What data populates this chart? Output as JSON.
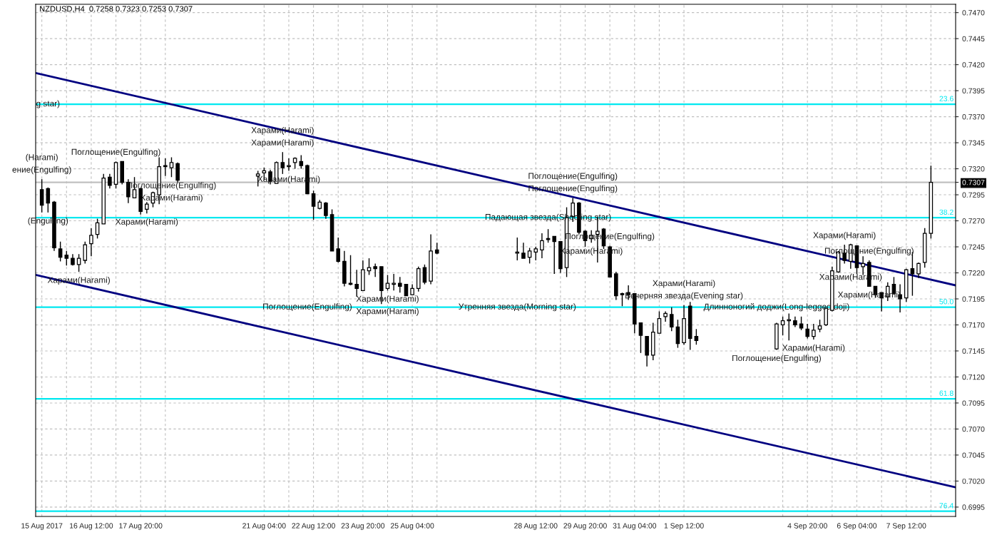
{
  "chart_data": {
    "type": "candlestick",
    "title": "NZDUSD,H4  0.7258 0.7323 0.7253 0.7307",
    "x": [
      "2017-08-15T04:00",
      "2017-08-15T08:00",
      "2017-08-15T12:00",
      "2017-08-15T16:00",
      "2017-08-15T20:00",
      "2017-08-16T00:00",
      "2017-08-16T04:00",
      "2017-08-16T08:00",
      "2017-08-16T12:00",
      "2017-08-16T16:00",
      "2017-08-16T20:00",
      "2017-08-17T00:00",
      "2017-08-17T04:00",
      "2017-08-17T08:00",
      "2017-08-17T12:00",
      "2017-08-17T16:00",
      "2017-08-17T20:00",
      "2017-08-18T00:00",
      "2017-08-18T04:00",
      "2017-08-18T08:00",
      "2017-08-18T12:00",
      "2017-08-18T16:00",
      "2017-08-18T20:00",
      "2017-08-21T00:00",
      "2017-08-21T04:00",
      "2017-08-21T08:00",
      "2017-08-21T12:00",
      "2017-08-21T16:00",
      "2017-08-21T20:00",
      "2017-08-22T00:00",
      "2017-08-22T04:00",
      "2017-08-22T08:00",
      "2017-08-22T12:00",
      "2017-08-22T16:00",
      "2017-08-22T20:00",
      "2017-08-23T00:00",
      "2017-08-23T04:00",
      "2017-08-23T08:00",
      "2017-08-23T12:00",
      "2017-08-23T16:00",
      "2017-08-23T20:00",
      "2017-08-24T00:00",
      "2017-08-24T04:00",
      "2017-08-24T08:00",
      "2017-08-24T12:00",
      "2017-08-24T16:00",
      "2017-08-24T20:00",
      "2017-08-25T00:00",
      "2017-08-25T04:00",
      "2017-08-25T08:00",
      "2017-08-25T12:00",
      "2017-08-25T16:00",
      "2017-08-25T20:00",
      "2017-08-28T00:00",
      "2017-08-28T04:00",
      "2017-08-28T08:00",
      "2017-08-28T12:00",
      "2017-08-28T16:00",
      "2017-08-28T20:00",
      "2017-08-29T00:00",
      "2017-08-29T04:00",
      "2017-08-29T08:00",
      "2017-08-29T12:00",
      "2017-08-29T16:00",
      "2017-08-29T20:00",
      "2017-08-30T00:00",
      "2017-08-30T04:00",
      "2017-08-30T08:00",
      "2017-08-30T12:00",
      "2017-08-30T16:00",
      "2017-08-30T20:00",
      "2017-08-31T00:00",
      "2017-08-31T04:00",
      "2017-08-31T08:00",
      "2017-08-31T12:00",
      "2017-08-31T16:00",
      "2017-08-31T20:00",
      "2017-09-01T00:00",
      "2017-09-01T04:00",
      "2017-09-01T08:00",
      "2017-09-01T12:00",
      "2017-09-01T16:00",
      "2017-09-01T20:00",
      "2017-09-04T00:00",
      "2017-09-04T04:00",
      "2017-09-04T08:00",
      "2017-09-04T12:00",
      "2017-09-04T16:00",
      "2017-09-04T20:00",
      "2017-09-05T00:00",
      "2017-09-05T04:00",
      "2017-09-05T08:00",
      "2017-09-05T12:00",
      "2017-09-05T16:00",
      "2017-09-05T20:00",
      "2017-09-06T00:00",
      "2017-09-06T04:00",
      "2017-09-06T08:00",
      "2017-09-06T12:00",
      "2017-09-06T16:00",
      "2017-09-06T20:00",
      "2017-09-07T00:00",
      "2017-09-07T04:00",
      "2017-09-07T08:00",
      "2017-09-07T12:00",
      "2017-09-07T16:00",
      "2017-09-07T20:00",
      "2017-09-08T00:00",
      "2017-09-08T04:00"
    ],
    "ohlc": [
      [
        0.73,
        0.731,
        0.7278,
        0.7285
      ],
      [
        0.7301,
        0.7302,
        0.7278,
        0.7287
      ],
      [
        0.7288,
        0.7289,
        0.7241,
        0.7244
      ],
      [
        0.7243,
        0.725,
        0.7231,
        0.7235
      ],
      [
        0.7237,
        0.7241,
        0.7227,
        0.7234
      ],
      [
        0.7234,
        0.7238,
        0.7227,
        0.7228
      ],
      [
        0.7228,
        0.7238,
        0.7221,
        0.7234
      ],
      [
        0.7232,
        0.725,
        0.7229,
        0.7247
      ],
      [
        0.7248,
        0.7263,
        0.7236,
        0.7256
      ],
      [
        0.7257,
        0.7272,
        0.7253,
        0.7268
      ],
      [
        0.7267,
        0.7315,
        0.7267,
        0.7311
      ],
      [
        0.7312,
        0.7315,
        0.7301,
        0.7304
      ],
      [
        0.7305,
        0.7327,
        0.7301,
        0.7326
      ],
      [
        0.7327,
        0.7327,
        0.7305,
        0.7307
      ],
      [
        0.7307,
        0.731,
        0.7287,
        0.7293
      ],
      [
        0.7292,
        0.7312,
        0.7292,
        0.73
      ],
      [
        0.7301,
        0.7301,
        0.7276,
        0.7279
      ],
      [
        0.7281,
        0.7288,
        0.7277,
        0.7286
      ],
      [
        0.7287,
        0.7298,
        0.7283,
        0.7297
      ],
      [
        0.7295,
        0.7331,
        0.7286,
        0.7322
      ],
      [
        0.7323,
        0.733,
        0.7313,
        0.7322
      ],
      [
        0.7321,
        0.7331,
        0.7312,
        0.7326
      ],
      [
        0.7325,
        0.7326,
        0.7307,
        0.7309
      ],
      [
        0.7313,
        0.7318,
        0.7303,
        0.7315
      ],
      [
        0.7316,
        0.7321,
        0.7309,
        0.7318
      ],
      [
        0.7317,
        0.7319,
        0.7305,
        0.7308
      ],
      [
        0.7306,
        0.7327,
        0.7306,
        0.7326
      ],
      [
        0.7326,
        0.7336,
        0.7315,
        0.7321
      ],
      [
        0.7322,
        0.733,
        0.7318,
        0.7323
      ],
      [
        0.7326,
        0.7331,
        0.732,
        0.733
      ],
      [
        0.7327,
        0.7333,
        0.732,
        0.7323
      ],
      [
        0.7323,
        0.7324,
        0.7296,
        0.7296
      ],
      [
        0.7296,
        0.7299,
        0.7271,
        0.7284
      ],
      [
        0.7282,
        0.729,
        0.7281,
        0.7288
      ],
      [
        0.7287,
        0.7288,
        0.7272,
        0.7275
      ],
      [
        0.7276,
        0.7281,
        0.7241,
        0.7241
      ],
      [
        0.7243,
        0.7254,
        0.723,
        0.7231
      ],
      [
        0.7231,
        0.7241,
        0.7207,
        0.721
      ],
      [
        0.721,
        0.7237,
        0.7208,
        0.7209
      ],
      [
        0.7209,
        0.7223,
        0.7197,
        0.7205
      ],
      [
        0.7203,
        0.7232,
        0.7203,
        0.7223
      ],
      [
        0.7222,
        0.7234,
        0.7218,
        0.7225
      ],
      [
        0.7226,
        0.7229,
        0.7216,
        0.7224
      ],
      [
        0.7226,
        0.7226,
        0.719,
        0.7203
      ],
      [
        0.7205,
        0.7218,
        0.7203,
        0.721
      ],
      [
        0.7209,
        0.7219,
        0.7203,
        0.721
      ],
      [
        0.721,
        0.7216,
        0.7201,
        0.7207
      ],
      [
        0.7209,
        0.7209,
        0.7198,
        0.7198
      ],
      [
        0.7199,
        0.7209,
        0.7199,
        0.7205
      ],
      [
        0.7205,
        0.7226,
        0.7202,
        0.7224
      ],
      [
        0.7225,
        0.7228,
        0.7209,
        0.7211
      ],
      [
        0.7212,
        0.7257,
        0.7209,
        0.7241
      ],
      [
        0.7242,
        0.7249,
        0.7238,
        0.7239
      ],
      [
        0.7239,
        0.7254,
        0.7232,
        0.724
      ],
      [
        0.7239,
        0.7249,
        0.7234,
        0.7234
      ],
      [
        0.7235,
        0.7244,
        0.7229,
        0.7241
      ],
      [
        0.724,
        0.7245,
        0.7232,
        0.7243
      ],
      [
        0.7242,
        0.7258,
        0.7234,
        0.7251
      ],
      [
        0.7253,
        0.7262,
        0.7249,
        0.7252
      ],
      [
        0.7255,
        0.7255,
        0.7219,
        0.725
      ],
      [
        0.725,
        0.725,
        0.722,
        0.7224
      ],
      [
        0.7225,
        0.7283,
        0.7216,
        0.7273
      ],
      [
        0.7274,
        0.7292,
        0.7269,
        0.7287
      ],
      [
        0.7287,
        0.7288,
        0.7257,
        0.7259
      ],
      [
        0.726,
        0.7261,
        0.7245,
        0.7251
      ],
      [
        0.7253,
        0.7261,
        0.7249,
        0.7256
      ],
      [
        0.7257,
        0.7274,
        0.723,
        0.726
      ],
      [
        0.7262,
        0.7263,
        0.7243,
        0.7246
      ],
      [
        0.7245,
        0.7246,
        0.7216,
        0.7216
      ],
      [
        0.7219,
        0.7221,
        0.7194,
        0.7198
      ],
      [
        0.72,
        0.7201,
        0.7188,
        0.7199
      ],
      [
        0.7201,
        0.7208,
        0.7194,
        0.7199
      ],
      [
        0.72,
        0.72,
        0.7162,
        0.7171
      ],
      [
        0.7172,
        0.7172,
        0.7143,
        0.716
      ],
      [
        0.7159,
        0.7159,
        0.713,
        0.7141
      ],
      [
        0.7141,
        0.7172,
        0.7136,
        0.7163
      ],
      [
        0.7162,
        0.7183,
        0.7162,
        0.7176
      ],
      [
        0.7178,
        0.7183,
        0.7173,
        0.7181
      ],
      [
        0.718,
        0.7187,
        0.7164,
        0.7168
      ],
      [
        0.7168,
        0.7175,
        0.7148,
        0.7152
      ],
      [
        0.7153,
        0.7189,
        0.7151,
        0.7176
      ],
      [
        0.7188,
        0.7192,
        0.7146,
        0.7157
      ],
      [
        0.7159,
        0.7166,
        0.7151,
        0.7155
      ],
      [
        0.7147,
        0.7172,
        0.7146,
        0.7171
      ],
      [
        0.717,
        0.7178,
        0.716,
        0.7174
      ],
      [
        0.7174,
        0.7181,
        0.7155,
        0.7175
      ],
      [
        0.7174,
        0.7178,
        0.7168,
        0.717
      ],
      [
        0.7171,
        0.7178,
        0.7165,
        0.7167
      ],
      [
        0.7166,
        0.7171,
        0.7157,
        0.7159
      ],
      [
        0.7159,
        0.7171,
        0.7156,
        0.7165
      ],
      [
        0.7166,
        0.7175,
        0.7163,
        0.7169
      ],
      [
        0.717,
        0.7186,
        0.7169,
        0.7186
      ],
      [
        0.7184,
        0.7226,
        0.7183,
        0.7222
      ],
      [
        0.7221,
        0.7241,
        0.722,
        0.724
      ],
      [
        0.7239,
        0.7247,
        0.7229,
        0.7232
      ],
      [
        0.7231,
        0.7248,
        0.7224,
        0.7247
      ],
      [
        0.7246,
        0.7246,
        0.7219,
        0.7225
      ],
      [
        0.7226,
        0.7236,
        0.7218,
        0.7229
      ],
      [
        0.723,
        0.7232,
        0.7207,
        0.7207
      ],
      [
        0.7207,
        0.7207,
        0.7196,
        0.7199
      ],
      [
        0.7201,
        0.7201,
        0.7183,
        0.7196
      ],
      [
        0.7197,
        0.7211,
        0.7193,
        0.7207
      ],
      [
        0.7209,
        0.7216,
        0.7199,
        0.72
      ],
      [
        0.7199,
        0.7209,
        0.7182,
        0.7195
      ],
      [
        0.7196,
        0.7224,
        0.7192,
        0.7223
      ],
      [
        0.7224,
        0.724,
        0.7198,
        0.7219
      ],
      [
        0.7219,
        0.723,
        0.7215,
        0.7229
      ],
      [
        0.723,
        0.7263,
        0.7225,
        0.7258
      ],
      [
        0.7258,
        0.7323,
        0.7253,
        0.7307
      ]
    ],
    "series": [
      {
        "type": "line",
        "color": "#000080",
        "x": [
          "2017-08-15T00:00",
          "2017-09-08T20:00"
        ],
        "values": [
          0.7412,
          0.7208
        ]
      },
      {
        "type": "line",
        "color": "#000080",
        "x": [
          "2017-08-15T00:00",
          "2017-09-08T20:00"
        ],
        "values": [
          0.7218,
          0.7014
        ]
      }
    ],
    "xlim": [
      "2017-08-15T00:00",
      "2017-09-08T20:00"
    ],
    "xticks": [
      {
        "value": "2017-08-15T04:00",
        "label": "15 Aug 2017"
      },
      {
        "value": "2017-08-15T20:00",
        "label": null
      },
      {
        "value": "2017-08-16T12:00",
        "label": "16 Aug 12:00"
      },
      {
        "value": "2017-08-17T04:00",
        "label": null
      },
      {
        "value": "2017-08-17T20:00",
        "label": "17 Aug 20:00"
      },
      {
        "value": "2017-08-18T12:00",
        "label": null
      },
      {
        "value": "2017-08-21T04:00",
        "label": "21 Aug 04:00"
      },
      {
        "value": "2017-08-21T20:00",
        "label": null
      },
      {
        "value": "2017-08-22T12:00",
        "label": "22 Aug 12:00"
      },
      {
        "value": "2017-08-23T04:00",
        "label": null
      },
      {
        "value": "2017-08-23T20:00",
        "label": "23 Aug 20:00"
      },
      {
        "value": "2017-08-24T12:00",
        "label": null
      },
      {
        "value": "2017-08-25T04:00",
        "label": "25 Aug 04:00"
      },
      {
        "value": "2017-08-25T20:00",
        "label": null
      },
      {
        "value": "2017-08-28T12:00",
        "label": "28 Aug 12:00"
      },
      {
        "value": "2017-08-29T04:00",
        "label": null
      },
      {
        "value": "2017-08-29T20:00",
        "label": "29 Aug 20:00"
      },
      {
        "value": "2017-08-30T12:00",
        "label": null
      },
      {
        "value": "2017-08-31T04:00",
        "label": "31 Aug 04:00"
      },
      {
        "value": "2017-08-31T20:00",
        "label": null
      },
      {
        "value": "2017-09-01T12:00",
        "label": "1 Sep 12:00"
      },
      {
        "value": "2017-09-04T04:00",
        "label": null
      },
      {
        "value": "2017-09-04T20:00",
        "label": "4 Sep 20:00"
      },
      {
        "value": "2017-09-05T12:00",
        "label": null
      },
      {
        "value": "2017-09-06T04:00",
        "label": "6 Sep 04:00"
      },
      {
        "value": "2017-09-06T20:00",
        "label": null
      },
      {
        "value": "2017-09-07T12:00",
        "label": "7 Sep 12:00"
      },
      {
        "value": "2017-09-08T04:00",
        "label": null
      }
    ],
    "ylim": [
      0.6986,
      0.7478
    ],
    "yticks": [
      0.6995,
      {
        "value": 0.702,
        "label": "0.7020"
      },
      0.7045,
      {
        "value": 0.707,
        "label": "0.7070"
      },
      0.7095,
      {
        "value": 0.712,
        "label": "0.7120"
      },
      0.7145,
      {
        "value": 0.717,
        "label": "0.7170"
      },
      0.7195,
      {
        "value": 0.722,
        "label": "0.7220"
      },
      0.7245,
      {
        "value": 0.727,
        "label": "0.7270"
      },
      0.7295,
      0.7307,
      {
        "value": 0.732,
        "label": "0.7320"
      },
      0.7345,
      {
        "value": 0.737,
        "label": "0.7370"
      },
      0.7395,
      {
        "value": 0.742,
        "label": "0.7420"
      },
      0.7445,
      {
        "value": 0.747,
        "label": "0.7470"
      }
    ],
    "grid": true,
    "ref_lines": [
      {
        "axis": "y",
        "value": 0.7382,
        "color": "#00e8f0"
      },
      {
        "axis": "y",
        "value": 0.7273,
        "color": "#00e8f0"
      },
      {
        "axis": "y",
        "value": 0.7187,
        "color": "#00e8f0"
      },
      {
        "axis": "y",
        "value": 0.7099,
        "color": "#00e8f0"
      },
      {
        "axis": "y",
        "value": 0.6991,
        "color": "#00e8f0"
      },
      {
        "axis": "y",
        "value": 0.7307,
        "color": "#c0c0c0"
      }
    ],
    "annotations": [
      {
        "text": "23.6",
        "x": "2017-09-08T20:00",
        "y": 0.7382
      },
      {
        "text": "38.2",
        "x": "2017-09-08T20:00",
        "y": 0.7273
      },
      {
        "text": "50.0",
        "x": "2017-09-08T20:00",
        "y": 0.7187
      },
      {
        "text": "61.8",
        "x": "2017-09-08T20:00",
        "y": 0.7099
      },
      {
        "text": "76.4",
        "x": "2017-09-08T20:00",
        "y": 0.6991
      },
      {
        "text": "ение(Engulfing)",
        "x": "2017-08-15T04:00",
        "y": 0.731
      },
      {
        "text": "(Harami)",
        "x": "2017-08-15T04:00",
        "y": 0.731
      },
      {
        "text": "g star)",
        "x": "2017-08-15T08:00",
        "y": 0.7382
      },
      {
        "text": "(Engulfing)",
        "x": "2017-08-15T08:00",
        "y": 0.7278
      },
      {
        "text": "Харами(Harami)",
        "x": "2017-08-16T04:00",
        "y": 0.7221
      },
      {
        "text": "Поглощение(Engulfing)",
        "x": "2017-08-17T04:00",
        "y": 0.7327
      },
      {
        "text": "Харами(Harami)",
        "x": "2017-08-18T00:00",
        "y": 0.7277
      },
      {
        "text": "Харами(Harami)",
        "x": "2017-08-21T20:00",
        "y": 0.7318
      },
      {
        "text": "Поглощение(Engulfing)",
        "x": "2017-08-18T16:00",
        "y": 0.7312
      },
      {
        "text": "Харами(Harami)",
        "x": "2017-08-18T16:00",
        "y": 0.7312
      },
      {
        "text": "Харами(Harami)",
        "x": "2017-08-21T16:00",
        "y": 0.7336
      },
      {
        "text": "Харами(Harami)",
        "x": "2017-08-21T16:00",
        "y": 0.7336
      },
      {
        "text": "Утренняя звезда(Morning star)",
        "x": "2017-08-28T00:00",
        "y": 0.7187
      },
      {
        "text": "Харами(Harami)",
        "x": "2017-08-24T12:00",
        "y": 0.7203
      },
      {
        "text": "Поглощение(Engulfing)",
        "x": "2017-08-22T08:00",
        "y": 0.7187
      },
      {
        "text": "Харами(Harami)",
        "x": "2017-08-24T12:00",
        "y": 0.7203
      },
      {
        "text": "Падающая звезда(Shooting star)",
        "x": "2017-08-28T20:00",
        "y": 0.7273
      },
      {
        "text": "Поглощение(Engulfing)",
        "x": "2017-08-29T12:00",
        "y": 0.7292
      },
      {
        "text": "Поглощение(Engulfing)",
        "x": "2017-08-29T12:00",
        "y": 0.7292
      },
      {
        "text": "Поглощение(Engulfing)",
        "x": "2017-08-30T12:00",
        "y": 0.7246
      },
      {
        "text": "Харами(Harami)",
        "x": "2017-08-30T00:00",
        "y": 0.7249
      },
      {
        "text": "Длинноногий доджи(Long-legged doji)",
        "x": "2017-09-04T00:00",
        "y": 0.7187
      },
      {
        "text": "Вечерняя звезда(Evening star)",
        "x": "2017-09-01T12:00",
        "y": 0.7189
      },
      {
        "text": "Харами(Harami)",
        "x": "2017-09-01T12:00",
        "y": 0.7189
      },
      {
        "text": "Поглощение(Engulfing)",
        "x": "2017-09-04T00:00",
        "y": 0.7146
      },
      {
        "text": "Харами(Harami)",
        "x": "2017-09-05T00:00",
        "y": 0.7156
      },
      {
        "text": "Харами(Harami)",
        "x": "2017-09-05T20:00",
        "y": 0.7247
      },
      {
        "text": "Харами(Harami)",
        "x": "2017-09-06T00:00",
        "y": 0.7224
      },
      {
        "text": "Поглощение(Engulfing)",
        "x": "2017-09-06T12:00",
        "y": 0.7232
      },
      {
        "text": "Харами(Harami)",
        "x": "2017-09-06T12:00",
        "y": 0.7207
      }
    ]
  }
}
